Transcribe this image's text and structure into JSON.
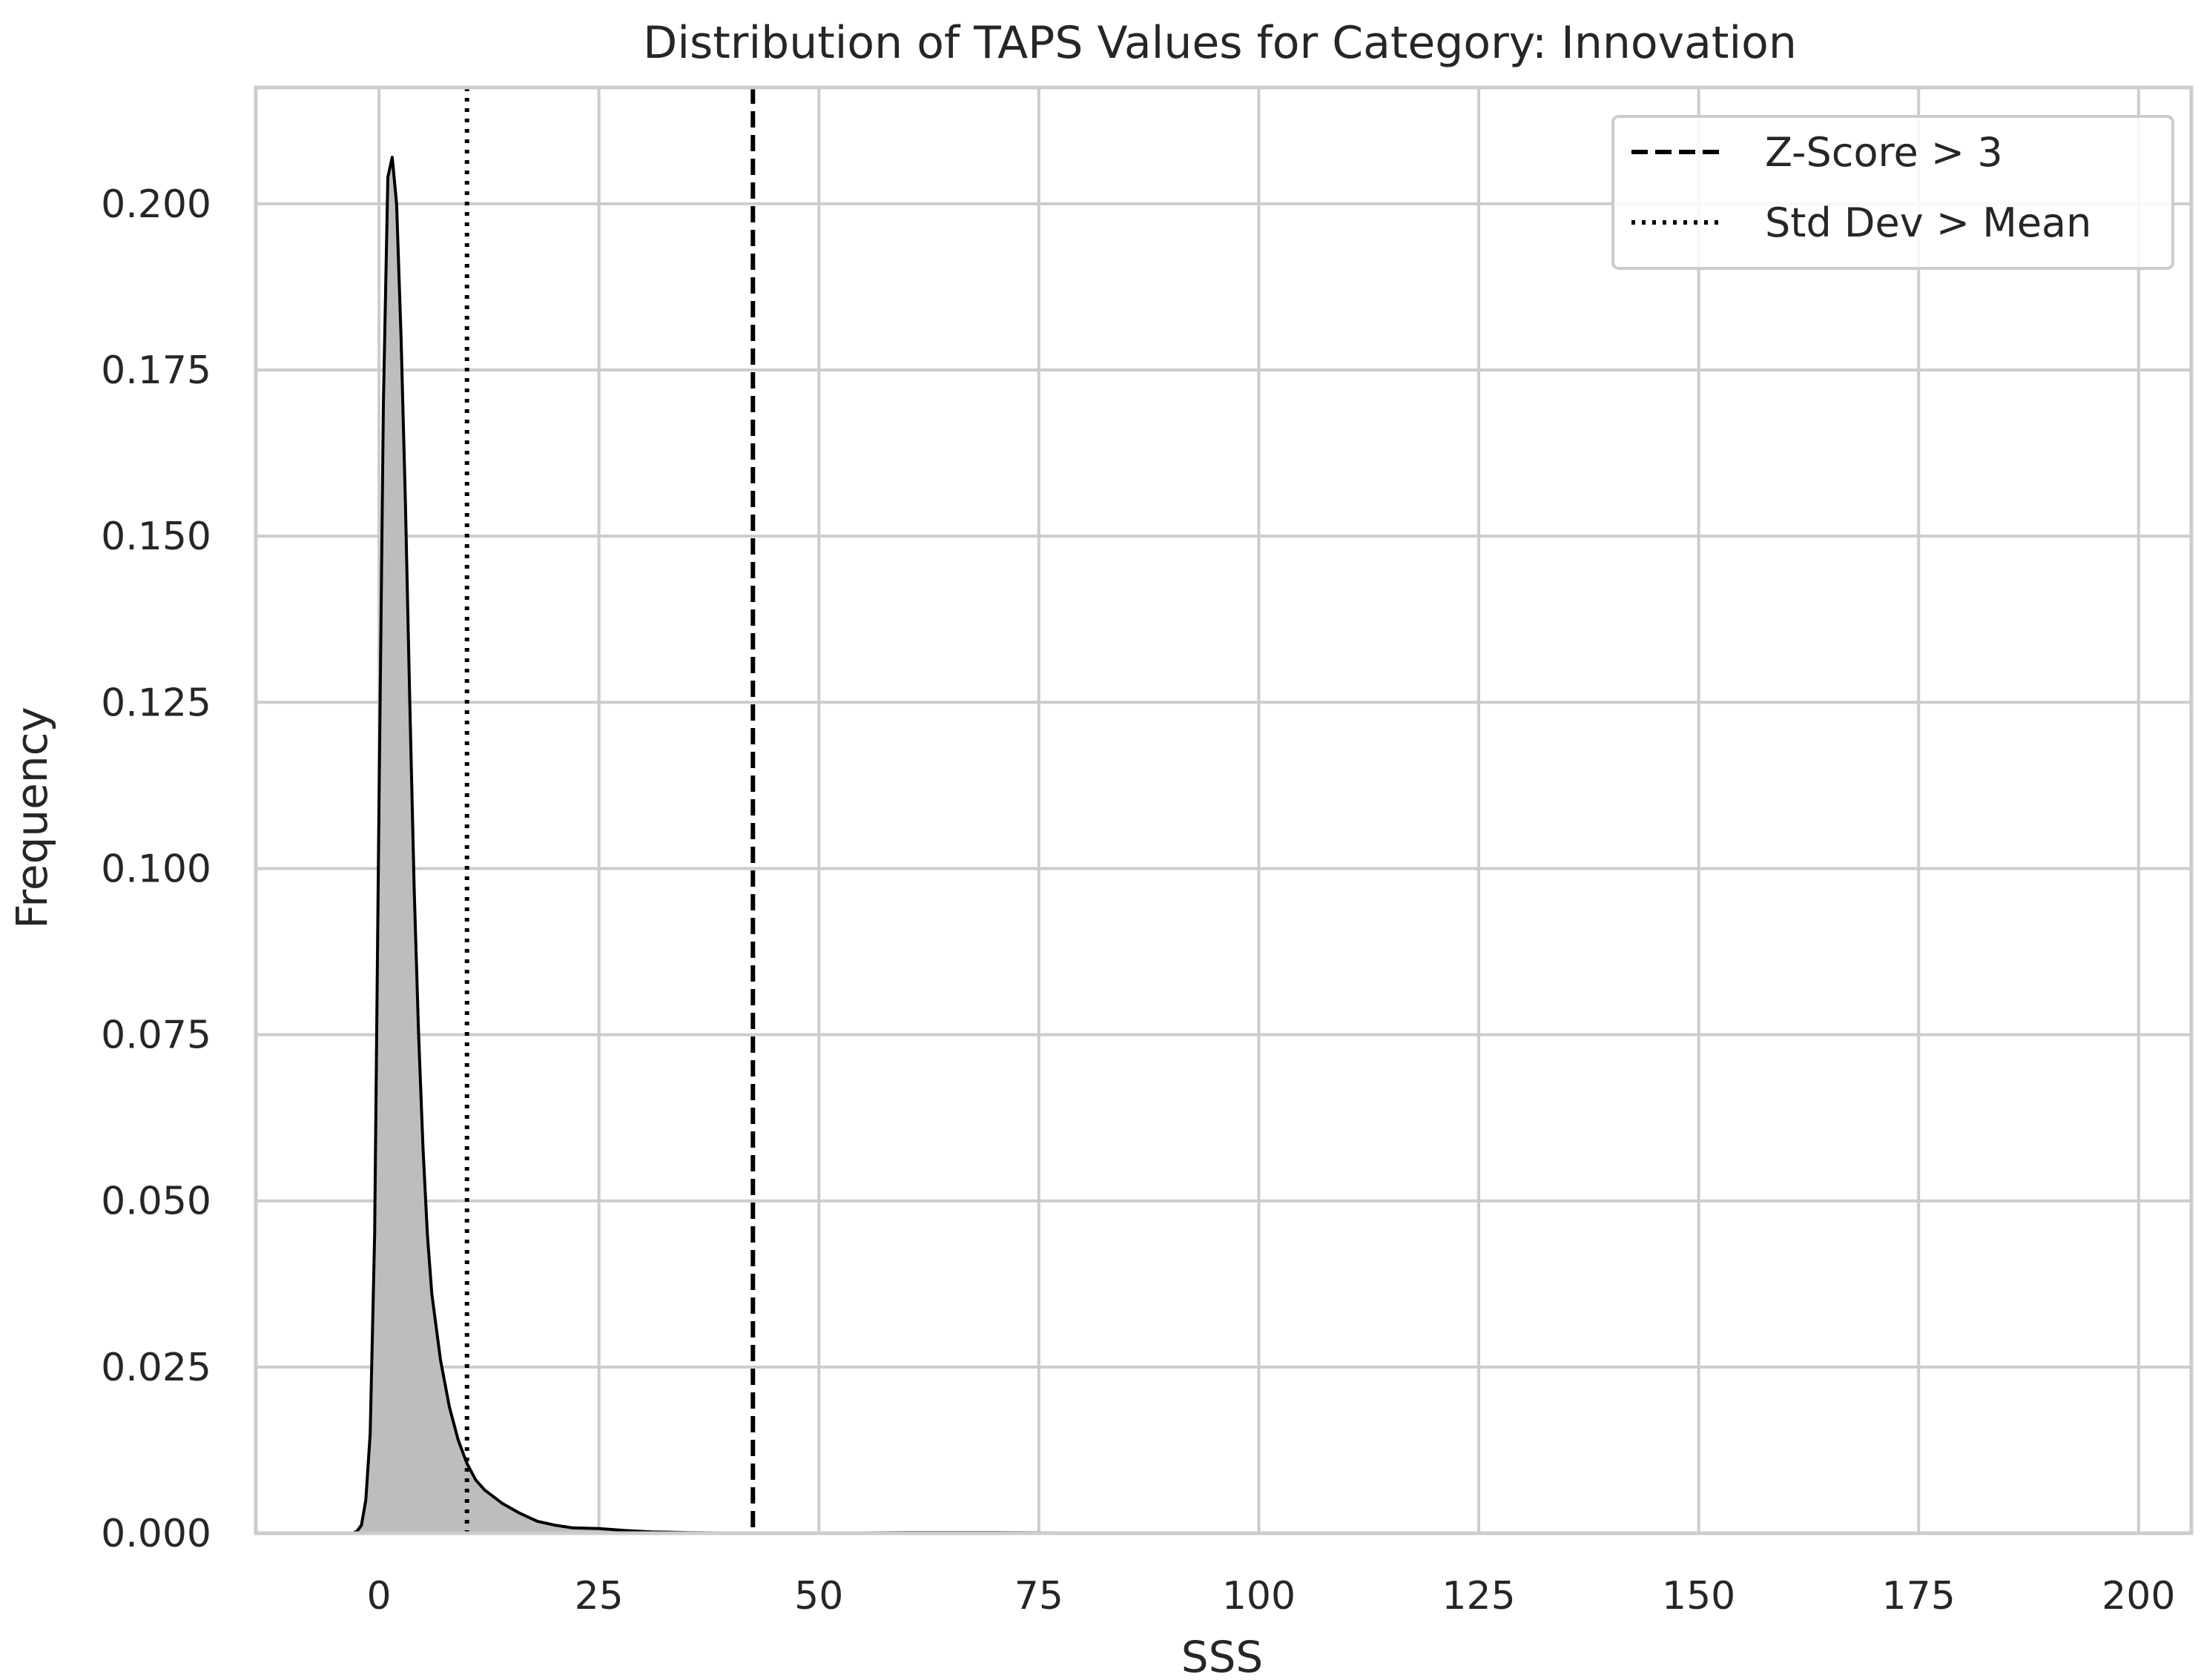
{
  "chart_data": {
    "type": "area",
    "title": "Distribution of TAPS Values for Category: Innovation",
    "xlabel": "SSS",
    "ylabel": "Frequency",
    "xlim": [
      -14,
      206
    ],
    "ylim": [
      0,
      0.2175
    ],
    "xticks": [
      0,
      25,
      50,
      75,
      100,
      125,
      150,
      175,
      200
    ],
    "xtick_labels": [
      "0",
      "25",
      "50",
      "75",
      "100",
      "125",
      "150",
      "175",
      "200"
    ],
    "yticks": [
      0.0,
      0.025,
      0.05,
      0.075,
      0.1,
      0.125,
      0.15,
      0.175,
      0.2
    ],
    "ytick_labels": [
      "0.000",
      "0.025",
      "0.050",
      "0.075",
      "0.100",
      "0.125",
      "0.150",
      "0.175",
      "0.200"
    ],
    "grid": true,
    "legend_position": "top-right",
    "series": [
      {
        "kind": "density",
        "fill_color": "#bdbdbd",
        "line_color": "#000000",
        "x": [
          -3,
          -2.5,
          -2,
          -1.5,
          -1,
          -0.5,
          0,
          0.5,
          1,
          1.5,
          2,
          2.5,
          3,
          3.5,
          4,
          4.5,
          5,
          5.5,
          6,
          7,
          8,
          9,
          10,
          11,
          12,
          14,
          16,
          18,
          20,
          22,
          25,
          28,
          31,
          35,
          40,
          50,
          60,
          70,
          80,
          100,
          120,
          150,
          175,
          198
        ],
        "y": [
          0,
          0.0003,
          0.0012,
          0.005,
          0.015,
          0.045,
          0.11,
          0.17,
          0.204,
          0.207,
          0.2,
          0.18,
          0.155,
          0.125,
          0.097,
          0.075,
          0.058,
          0.045,
          0.036,
          0.026,
          0.019,
          0.014,
          0.0105,
          0.008,
          0.0065,
          0.0045,
          0.003,
          0.0018,
          0.0012,
          0.0008,
          0.0007,
          0.0004,
          0.0002,
          0.0001,
          5e-05,
          2e-05,
          0.0001,
          0.0001,
          5e-05,
          3e-05,
          2e-05,
          1e-05,
          1e-05,
          0
        ]
      }
    ],
    "vlines": [
      {
        "x": 42.5,
        "style": "dashed",
        "label": "Z-Score > 3",
        "color": "#000000"
      },
      {
        "x": 10,
        "style": "dotted",
        "label": "Std Dev > Mean",
        "color": "#000000"
      }
    ]
  }
}
